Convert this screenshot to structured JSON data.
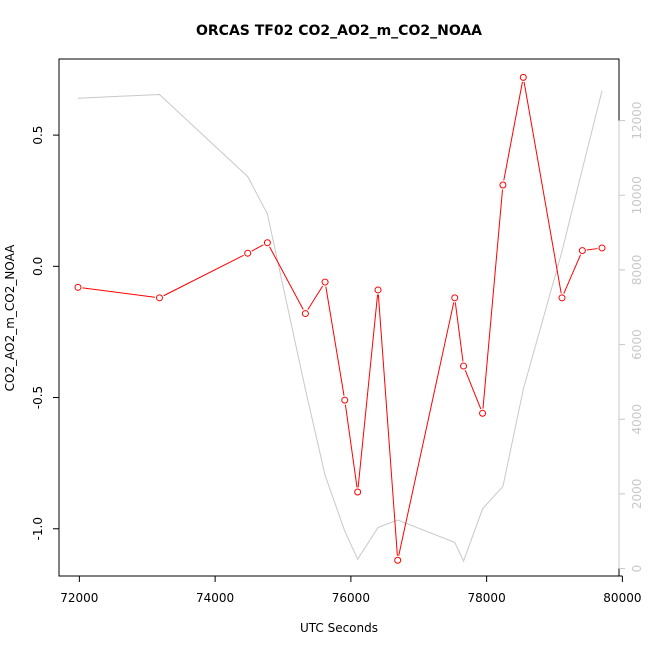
{
  "chart_data": {
    "type": "line",
    "title": "ORCAS TF02 CO2_AO2_m_CO2_NOAA",
    "xlabel": "UTC Seconds",
    "ylabel": "CO2_AO2_m_CO2_NOAA",
    "xlim": [
      71700,
      79950
    ],
    "ylim": [
      -1.18,
      0.79
    ],
    "x_ticks": [
      {
        "value": 72000,
        "label": "72000"
      },
      {
        "value": 74000,
        "label": "74000"
      },
      {
        "value": 76000,
        "label": "76000"
      },
      {
        "value": 78000,
        "label": "78000"
      },
      {
        "value": 80000,
        "label": "80000"
      }
    ],
    "y_ticks": [
      {
        "value": -1.0,
        "label": "-1.0"
      },
      {
        "value": -0.5,
        "label": "-0.5"
      },
      {
        "value": 0.0,
        "label": "0.0"
      },
      {
        "value": 0.5,
        "label": "0.5"
      }
    ],
    "y2lim": [
      -200,
      13650
    ],
    "y2_ticks": [
      {
        "value": 0,
        "label": "0"
      },
      {
        "value": 2000,
        "label": "2000"
      },
      {
        "value": 4000,
        "label": "4000"
      },
      {
        "value": 6000,
        "label": "6000"
      },
      {
        "value": 8000,
        "label": "8000"
      },
      {
        "value": 10000,
        "label": "10000"
      },
      {
        "value": 12000,
        "label": "12000"
      }
    ],
    "grid": false,
    "series": [
      {
        "role": "primary",
        "color": "#ff0000",
        "markers": "open-circle",
        "x": [
          71980,
          73180,
          74480,
          74770,
          75330,
          75620,
          75910,
          76100,
          76400,
          76690,
          77530,
          77660,
          77940,
          78240,
          78540,
          79110,
          79410,
          79700
        ],
        "y": [
          -0.08,
          -0.12,
          0.05,
          0.09,
          -0.18,
          -0.06,
          -0.51,
          -0.86,
          -0.09,
          -1.12,
          -0.12,
          -0.38,
          -0.56,
          0.31,
          0.72,
          -0.12,
          0.06,
          0.07
        ]
      },
      {
        "role": "secondary",
        "color": "#c8c8c8",
        "markers": "none",
        "x": [
          71980,
          73180,
          74480,
          74770,
          75330,
          75620,
          75910,
          76100,
          76400,
          76690,
          77530,
          77660,
          77940,
          78240,
          78540,
          79110,
          79410,
          79700
        ],
        "y": [
          12600,
          12700,
          10500,
          9500,
          4800,
          2500,
          1000,
          250,
          1100,
          1300,
          700,
          200,
          1600,
          2200,
          4800,
          8500,
          10700,
          12800
        ]
      }
    ]
  }
}
